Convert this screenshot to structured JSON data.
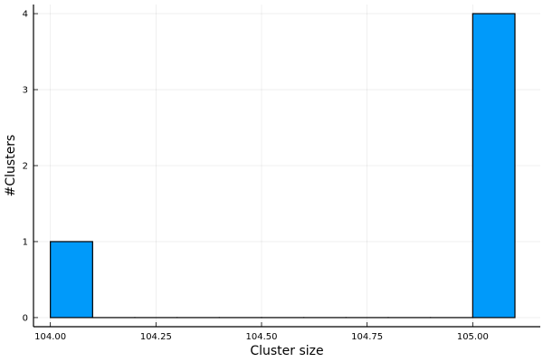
{
  "chart_data": {
    "type": "bar",
    "title": "",
    "xlabel": "Cluster size",
    "ylabel": "#Clusters",
    "xlim": [
      103.96,
      105.16
    ],
    "ylim": [
      -0.12,
      4.12
    ],
    "grid": true,
    "legend": "none",
    "bar_color": "#009AFA",
    "bins": [
      {
        "x0": 104.0,
        "x1": 104.1,
        "count": 1
      },
      {
        "x0": 104.1,
        "x1": 104.2,
        "count": 0
      },
      {
        "x0": 104.2,
        "x1": 104.3,
        "count": 0
      },
      {
        "x0": 104.3,
        "x1": 104.4,
        "count": 0
      },
      {
        "x0": 104.4,
        "x1": 104.5,
        "count": 0
      },
      {
        "x0": 104.5,
        "x1": 104.6,
        "count": 0
      },
      {
        "x0": 104.6,
        "x1": 104.7,
        "count": 0
      },
      {
        "x0": 104.7,
        "x1": 104.8,
        "count": 0
      },
      {
        "x0": 104.8,
        "x1": 104.9,
        "count": 0
      },
      {
        "x0": 104.9,
        "x1": 105.0,
        "count": 0
      },
      {
        "x0": 105.0,
        "x1": 105.1,
        "count": 4
      }
    ],
    "x_ticks": [
      {
        "value": 104.0,
        "label": "104.00"
      },
      {
        "value": 104.25,
        "label": "104.25"
      },
      {
        "value": 104.5,
        "label": "104.50"
      },
      {
        "value": 104.75,
        "label": "104.75"
      },
      {
        "value": 105.0,
        "label": "105.00"
      }
    ],
    "y_ticks": [
      {
        "value": 0,
        "label": "0"
      },
      {
        "value": 1,
        "label": "1"
      },
      {
        "value": 2,
        "label": "2"
      },
      {
        "value": 3,
        "label": "3"
      },
      {
        "value": 4,
        "label": "4"
      }
    ]
  }
}
